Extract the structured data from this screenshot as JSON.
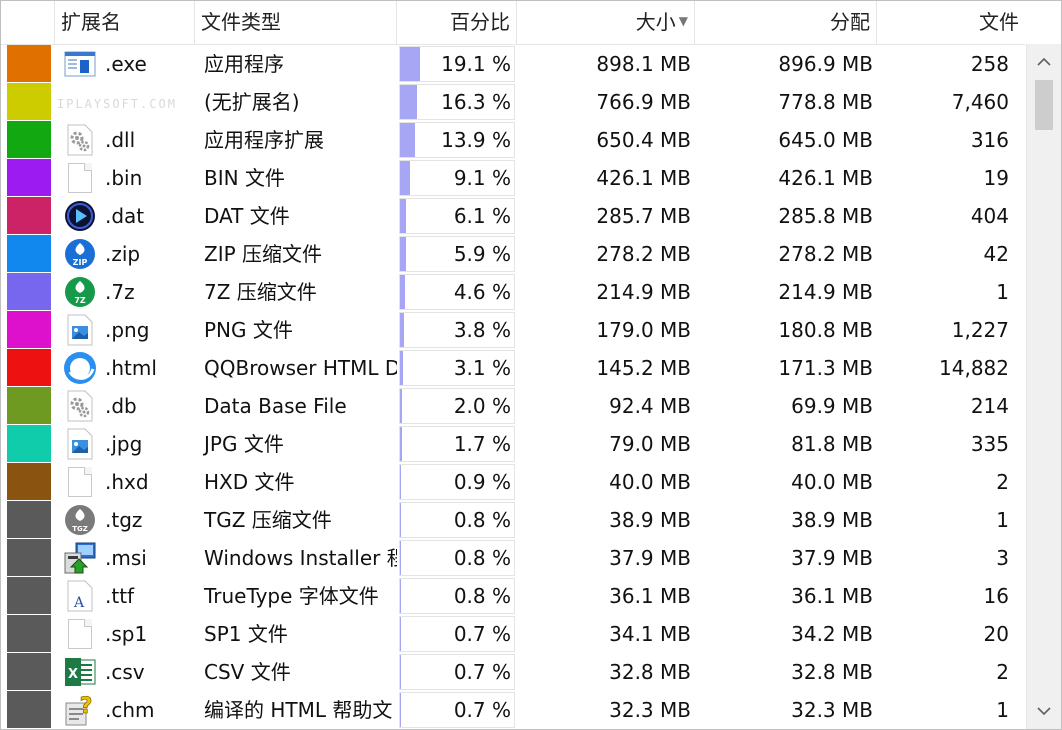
{
  "header": {
    "col_ext": "扩展名",
    "col_type": "文件类型",
    "col_pct": "百分比",
    "col_size": "大小",
    "col_alloc": "分配",
    "col_files": "文件"
  },
  "watermark": "IPLAYSOFT.COM",
  "rows": [
    {
      "color": "#e07000",
      "icon": "exe-window-icon",
      "ext": ".exe",
      "type": "应用程序",
      "pct": "19.1 %",
      "pct_value": 19.1,
      "size": "898.1 MB",
      "alloc": "896.9 MB",
      "files": "258"
    },
    {
      "color": "#cccc00",
      "icon": "none",
      "ext": "",
      "type": "(无扩展名)",
      "pct": "16.3 %",
      "pct_value": 16.3,
      "size": "766.9 MB",
      "alloc": "778.8 MB",
      "files": "7,460"
    },
    {
      "color": "#12a812",
      "icon": "gear-file-icon",
      "ext": ".dll",
      "type": "应用程序扩展",
      "pct": "13.9 %",
      "pct_value": 13.9,
      "size": "650.4 MB",
      "alloc": "645.0 MB",
      "files": "316"
    },
    {
      "color": "#9b1bf0",
      "icon": "blank-file-icon",
      "ext": ".bin",
      "type": "BIN 文件",
      "pct": "9.1 %",
      "pct_value": 9.1,
      "size": "426.1 MB",
      "alloc": "426.1 MB",
      "files": "19"
    },
    {
      "color": "#cc2266",
      "icon": "media-player-icon",
      "ext": ".dat",
      "type": "DAT 文件",
      "pct": "6.1 %",
      "pct_value": 6.1,
      "size": "285.7 MB",
      "alloc": "285.8 MB",
      "files": "404"
    },
    {
      "color": "#1188ee",
      "icon": "zip-archive-icon",
      "ext": ".zip",
      "type": "ZIP 压缩文件",
      "pct": "5.9 %",
      "pct_value": 5.9,
      "size": "278.2 MB",
      "alloc": "278.2 MB",
      "files": "42"
    },
    {
      "color": "#7766ee",
      "icon": "7z-archive-icon",
      "ext": ".7z",
      "type": "7Z 压缩文件",
      "pct": "4.6 %",
      "pct_value": 4.6,
      "size": "214.9 MB",
      "alloc": "214.9 MB",
      "files": "1"
    },
    {
      "color": "#dd11cc",
      "icon": "image-file-icon",
      "ext": ".png",
      "type": "PNG 文件",
      "pct": "3.8 %",
      "pct_value": 3.8,
      "size": "179.0 MB",
      "alloc": "180.8 MB",
      "files": "1,227"
    },
    {
      "color": "#ee1111",
      "icon": "browser-icon",
      "ext": ".html",
      "type": "QQBrowser HTML D",
      "pct": "3.1 %",
      "pct_value": 3.1,
      "size": "145.2 MB",
      "alloc": "171.3 MB",
      "files": "14,882"
    },
    {
      "color": "#6e9a22",
      "icon": "gear-file-icon",
      "ext": ".db",
      "type": "Data Base File",
      "pct": "2.0 %",
      "pct_value": 2.0,
      "size": "92.4 MB",
      "alloc": "69.9 MB",
      "files": "214"
    },
    {
      "color": "#11ccaa",
      "icon": "image-file-icon",
      "ext": ".jpg",
      "type": "JPG 文件",
      "pct": "1.7 %",
      "pct_value": 1.7,
      "size": "79.0 MB",
      "alloc": "81.8 MB",
      "files": "335"
    },
    {
      "color": "#8a5410",
      "icon": "blank-file-icon",
      "ext": ".hxd",
      "type": "HXD 文件",
      "pct": "0.9 %",
      "pct_value": 0.9,
      "size": "40.0 MB",
      "alloc": "40.0 MB",
      "files": "2"
    },
    {
      "color": "#5a5a5a",
      "icon": "tgz-archive-icon",
      "ext": ".tgz",
      "type": "TGZ 压缩文件",
      "pct": "0.8 %",
      "pct_value": 0.8,
      "size": "38.9 MB",
      "alloc": "38.9 MB",
      "files": "1"
    },
    {
      "color": "#5a5a5a",
      "icon": "installer-icon",
      "ext": ".msi",
      "type": "Windows Installer 程",
      "pct": "0.8 %",
      "pct_value": 0.8,
      "size": "37.9 MB",
      "alloc": "37.9 MB",
      "files": "3"
    },
    {
      "color": "#5a5a5a",
      "icon": "font-file-icon",
      "ext": ".ttf",
      "type": "TrueType 字体文件",
      "pct": "0.8 %",
      "pct_value": 0.8,
      "size": "36.1 MB",
      "alloc": "36.1 MB",
      "files": "16"
    },
    {
      "color": "#5a5a5a",
      "icon": "blank-file-icon",
      "ext": ".sp1",
      "type": "SP1 文件",
      "pct": "0.7 %",
      "pct_value": 0.7,
      "size": "34.1 MB",
      "alloc": "34.2 MB",
      "files": "20"
    },
    {
      "color": "#5a5a5a",
      "icon": "excel-icon",
      "ext": ".csv",
      "type": "CSV 文件",
      "pct": "0.7 %",
      "pct_value": 0.7,
      "size": "32.8 MB",
      "alloc": "32.8 MB",
      "files": "2"
    },
    {
      "color": "#5a5a5a",
      "icon": "help-file-icon",
      "ext": ".chm",
      "type": "编译的 HTML 帮助文",
      "pct": "0.7 %",
      "pct_value": 0.7,
      "size": "32.3 MB",
      "alloc": "32.3 MB",
      "files": "1"
    }
  ],
  "scrollbar": {
    "up_icon": "chevron-up-icon",
    "down_icon": "chevron-down-icon"
  }
}
